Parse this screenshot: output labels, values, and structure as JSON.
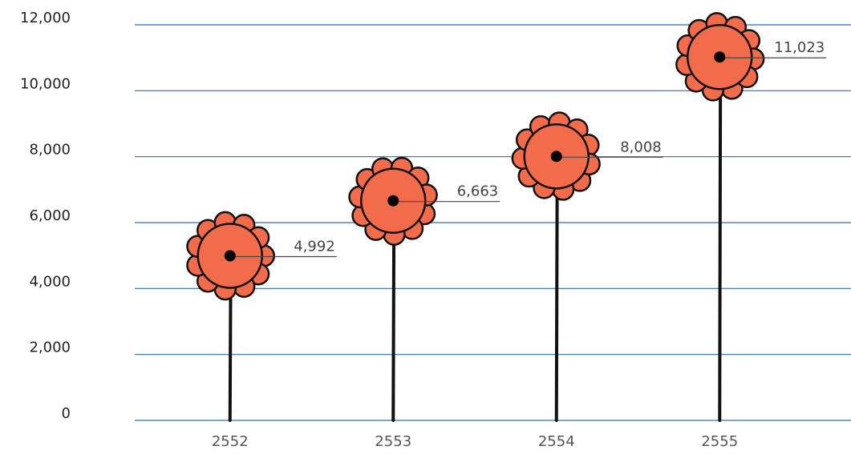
{
  "chart_data": {
    "type": "lollipop",
    "categories": [
      "2552",
      "2553",
      "2554",
      "2555"
    ],
    "values": [
      4992,
      6663,
      8008,
      11023
    ],
    "value_labels": [
      "4,992",
      "6,663",
      "8,008",
      "11,023"
    ],
    "color": "#f26b4a",
    "ylim": [
      0,
      12000
    ],
    "yticks": [
      0,
      {
        "value": 2000,
        "label": "2,000"
      },
      {
        "value": 4000,
        "label": "4,000"
      },
      {
        "value": 6000,
        "label": "6,000"
      },
      {
        "value": 8000,
        "label": "8,000"
      },
      {
        "value": 10000,
        "label": "10,000"
      },
      {
        "value": 12000,
        "label": "12,000"
      }
    ],
    "grid": true
  }
}
